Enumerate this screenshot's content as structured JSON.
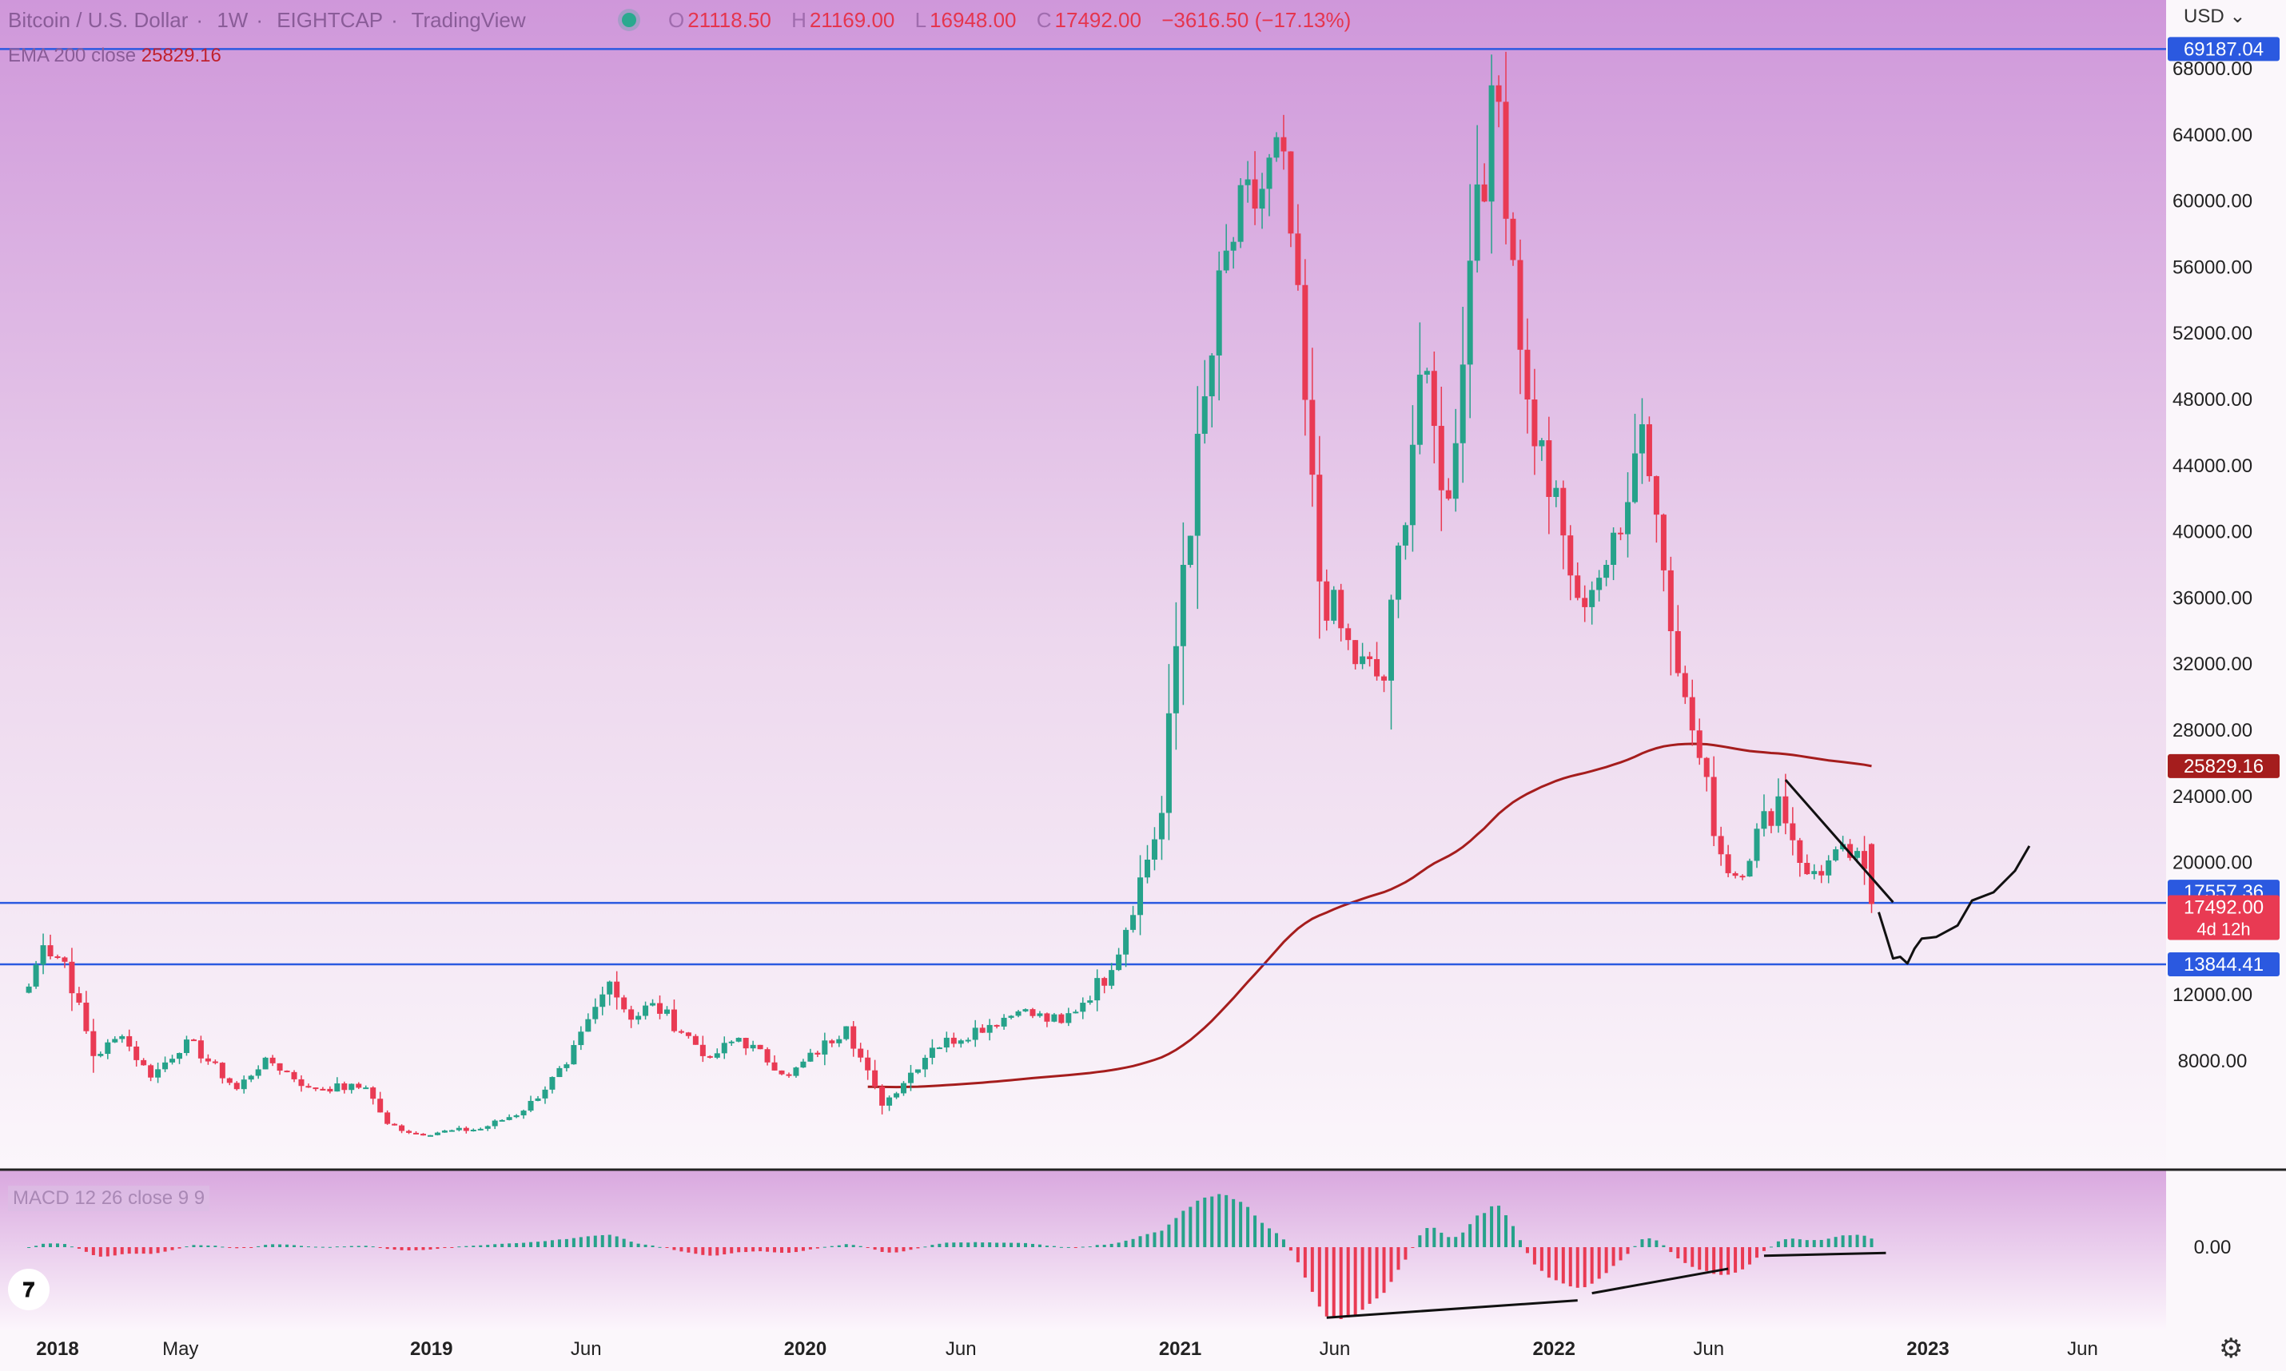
{
  "header": {
    "symbol": "Bitcoin / U.S. Dollar",
    "interval": "1W",
    "exchange": "EIGHTCAP",
    "source": "TradingView",
    "ohlc": [
      {
        "key": "O",
        "value": "21118.50"
      },
      {
        "key": "H",
        "value": "21169.00"
      },
      {
        "key": "L",
        "value": "16948.00"
      },
      {
        "key": "C",
        "value": "17492.00"
      },
      {
        "key": "",
        "value": "−3616.50 (−17.13%)"
      }
    ]
  },
  "ema": {
    "label": "EMA 200 close",
    "value": "25829.16",
    "color": "#a51d1d"
  },
  "macd": {
    "label": "MACD 12 26 close 9 9",
    "zero_label": "0.00"
  },
  "currency": "USD",
  "colors": {
    "up": "#26a28a",
    "down": "#e93a53",
    "line_blue": "#2b59e0",
    "ema": "#a51d1d"
  },
  "chart_data": {
    "type": "candlestick",
    "interval": "1W",
    "y_axis": {
      "scale": "linear",
      "ticks": [
        8000,
        12000,
        16000,
        20000,
        24000,
        28000,
        32000,
        36000,
        40000,
        44000,
        48000,
        52000,
        56000,
        60000,
        64000,
        68000
      ]
    },
    "y_tick_labels": [
      "8000.00",
      "12000.00",
      "20000.00",
      "24000.00",
      "28000.00",
      "32000.00",
      "36000.00",
      "40000.00",
      "44000.00",
      "48000.00",
      "52000.00",
      "56000.00",
      "60000.00",
      "64000.00",
      "68000.00"
    ],
    "x_tick_labels": [
      "2018",
      "May",
      "2019",
      "Jun",
      "2020",
      "Jun",
      "2021",
      "Jun",
      "2022",
      "Jun",
      "2023",
      "Jun"
    ],
    "anchors": [
      [
        "2017-12-04",
        12500
      ],
      [
        "2017-12-18",
        15000
      ],
      [
        "2018-01-08",
        14000
      ],
      [
        "2018-02-05",
        8300
      ],
      [
        "2018-03-05",
        9500
      ],
      [
        "2018-04-02",
        7000
      ],
      [
        "2018-05-07",
        9300
      ],
      [
        "2018-06-25",
        6300
      ],
      [
        "2018-07-23",
        8200
      ],
      [
        "2018-09-03",
        6400
      ],
      [
        "2018-10-29",
        6400
      ],
      [
        "2018-11-19",
        4200
      ],
      [
        "2018-12-17",
        3600
      ],
      [
        "2019-02-18",
        3900
      ],
      [
        "2019-04-01",
        5000
      ],
      [
        "2019-05-13",
        7800
      ],
      [
        "2019-06-24",
        12800
      ],
      [
        "2019-07-15",
        10500
      ],
      [
        "2019-08-05",
        11500
      ],
      [
        "2019-09-30",
        8200
      ],
      [
        "2019-10-28",
        9400
      ],
      [
        "2019-12-16",
        7100
      ],
      [
        "2020-02-10",
        10100
      ],
      [
        "2020-03-16",
        5300
      ],
      [
        "2020-05-04",
        8800
      ],
      [
        "2020-07-27",
        11000
      ],
      [
        "2020-09-07",
        10300
      ],
      [
        "2020-10-26",
        13500
      ],
      [
        "2020-12-14",
        23000
      ],
      [
        "2021-01-04",
        38000
      ],
      [
        "2021-02-15",
        57000
      ],
      [
        "2021-04-12",
        63000
      ],
      [
        "2021-05-17",
        37000
      ],
      [
        "2021-06-21",
        32000
      ],
      [
        "2021-07-19",
        31000
      ],
      [
        "2021-08-23",
        49500
      ],
      [
        "2021-09-20",
        42000
      ],
      [
        "2021-10-18",
        61000
      ],
      [
        "2021-11-08",
        66000
      ],
      [
        "2021-12-06",
        48000
      ],
      [
        "2022-01-24",
        36000
      ],
      [
        "2022-02-21",
        38000
      ],
      [
        "2022-03-28",
        46500
      ],
      [
        "2022-05-09",
        30000
      ],
      [
        "2022-06-13",
        20500
      ],
      [
        "2022-06-27",
        19200
      ],
      [
        "2022-08-08",
        24000
      ],
      [
        "2022-09-05",
        19300
      ],
      [
        "2022-10-24",
        20700
      ],
      [
        "2022-11-07",
        17492
      ]
    ],
    "last_bar": {
      "open": 21118.5,
      "high": 21169.0,
      "low": 16948.0,
      "close": 17492.0,
      "change": -3616.5,
      "change_pct": -17.13
    },
    "ema200_last": 25829.16,
    "horizontal_lines": [
      69187.04,
      17557.36,
      13844.41
    ],
    "price_labels": [
      {
        "text": "69187.04",
        "value": 69187.04,
        "bg": "#2b59e0"
      },
      {
        "text": "25829.16",
        "value": 25829.16,
        "bg": "#a51d1d"
      },
      {
        "text": "17557.36",
        "value": 17557.36,
        "bg": "#2b59e0"
      },
      {
        "text": "17492.00",
        "value": 17492.0,
        "bg": "#e93a53",
        "sub": "4d 12h"
      },
      {
        "text": "13844.41",
        "value": 13844.41,
        "bg": "#2b59e0"
      }
    ]
  }
}
